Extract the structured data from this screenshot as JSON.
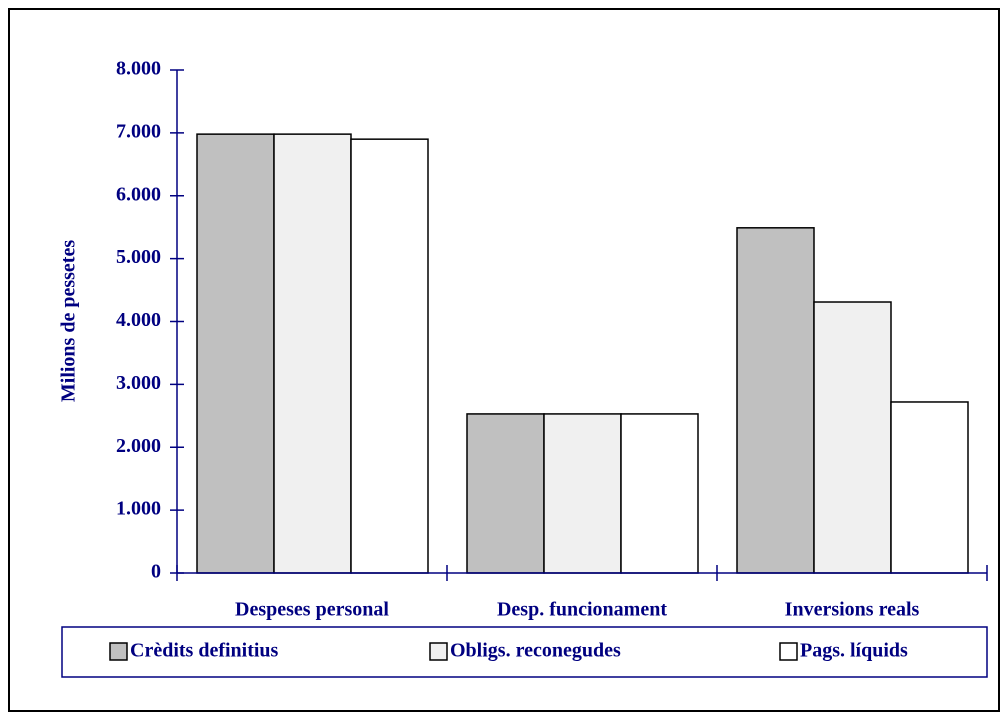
{
  "chart_data": {
    "type": "bar",
    "y_label": "Milions de pessetes",
    "categories": [
      "Despeses personal",
      "Desp. funcionament",
      "Inversions reals"
    ],
    "series": [
      {
        "name": "Crèdits definitius",
        "color": "#c0c0c0",
        "values": [
          6980,
          2530,
          5490
        ]
      },
      {
        "name": "Obligs. reconegudes",
        "color": "#f0f0f0",
        "values": [
          6980,
          2530,
          4310
        ]
      },
      {
        "name": "Pags. líquids",
        "color": "#ffffff",
        "values": [
          6900,
          2530,
          2720
        ]
      }
    ],
    "ylim": [
      0,
      8000
    ],
    "yticks": [
      0,
      {
        "value": 1000,
        "label": "1.000"
      },
      {
        "value": 2000,
        "label": "2.000"
      },
      {
        "value": 3000,
        "label": "3.000"
      },
      {
        "value": 4000,
        "label": "4.000"
      },
      {
        "value": 5000,
        "label": "5.000"
      },
      {
        "value": 6000,
        "label": "6.000"
      },
      {
        "value": 7000,
        "label": "7.000"
      },
      {
        "value": 8000,
        "label": "8.000"
      }
    ],
    "legend": "bottom"
  }
}
